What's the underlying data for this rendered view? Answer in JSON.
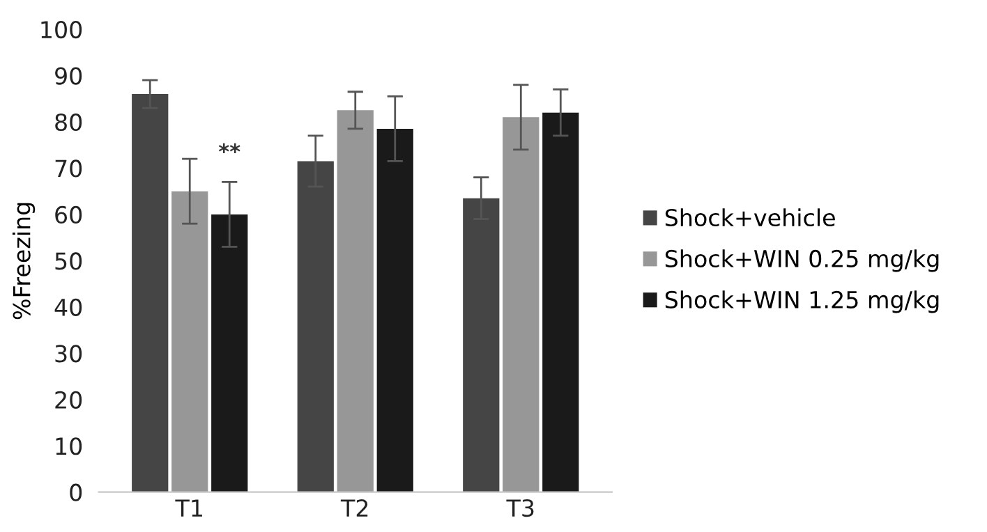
{
  "chart_data": {
    "type": "bar",
    "ylabel": "%Freezing",
    "categories": [
      "T1",
      "T2",
      "T3"
    ],
    "series": [
      {
        "name": "Shock+vehicle",
        "color": "#454545",
        "values": [
          86,
          71.5,
          63.5
        ],
        "errors": [
          3,
          5.5,
          4.5
        ]
      },
      {
        "name": "Shock+WIN 0.25 mg/kg",
        "color": "#979797",
        "values": [
          65,
          82.5,
          81
        ],
        "errors": [
          7,
          4,
          7
        ]
      },
      {
        "name": "Shock+WIN 1.25 mg/kg",
        "color": "#1a1a1a",
        "values": [
          60,
          78.5,
          82
        ],
        "errors": [
          7,
          7,
          5
        ]
      }
    ],
    "annotations": [
      {
        "text": "**",
        "x": "T1",
        "y": 71
      }
    ],
    "ylim": [
      0,
      100
    ],
    "yticks": [
      0,
      10,
      20,
      30,
      40,
      50,
      60,
      70,
      80,
      90,
      100
    ],
    "grid": false,
    "legend": "right"
  }
}
